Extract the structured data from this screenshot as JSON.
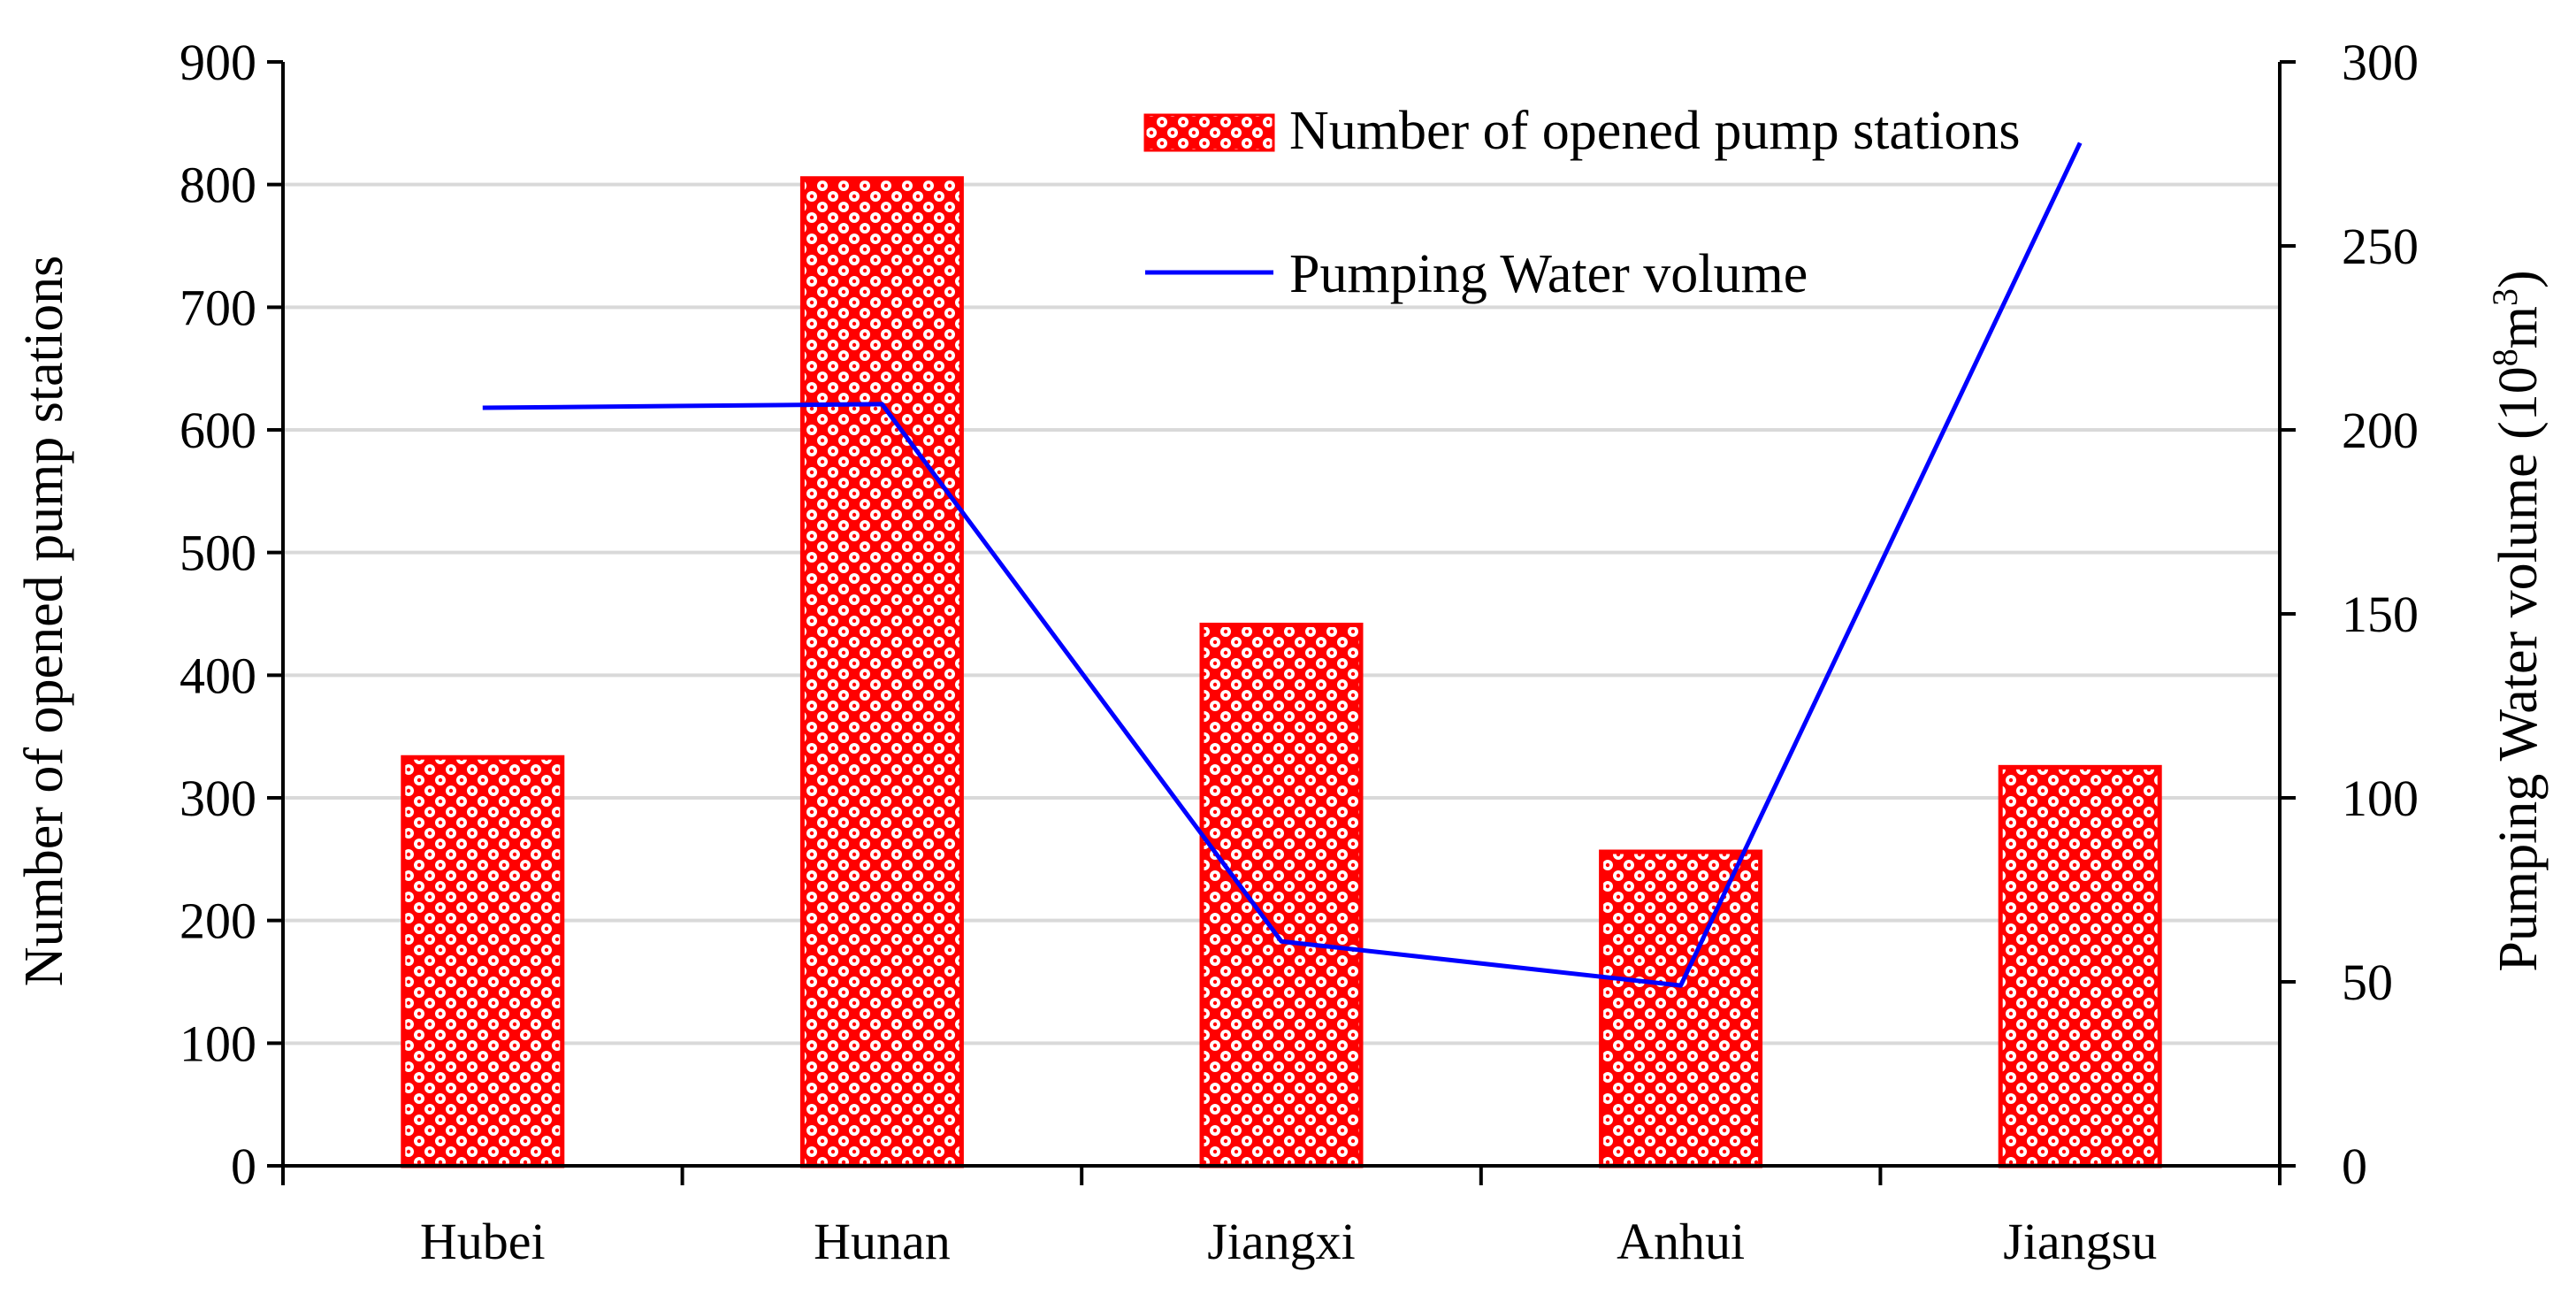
{
  "chart_data": {
    "type": "bar",
    "categories": [
      "Hubei",
      "Hunan",
      "Jiangxi",
      "Anhui",
      "Jiangsu"
    ],
    "series": [
      {
        "name": "Number of opened pump stations",
        "kind": "bar",
        "axis": "left",
        "values": [
          333,
          805,
          441,
          256,
          325
        ]
      },
      {
        "name": "Pumping Water volume",
        "kind": "line",
        "axis": "right",
        "values": [
          206,
          207,
          61,
          49,
          278
        ]
      }
    ],
    "y_left": {
      "label": "Number of opened  pump stations",
      "min": 0,
      "max": 900,
      "step": 100,
      "ticks": [
        "0",
        "100",
        "200",
        "300",
        "400",
        "500",
        "600",
        "700",
        "800",
        "900"
      ]
    },
    "y_right": {
      "label_main": "Pumping Water volume (10",
      "label_sup1": "8",
      "label_mid": "m",
      "label_sup2": "3",
      "label_end": ")",
      "min": 0,
      "max": 300,
      "step": 50,
      "ticks": [
        "0",
        "50",
        "100",
        "150",
        "200",
        "250",
        "300"
      ]
    },
    "grid": true,
    "legend_position": "top-right",
    "colors": {
      "bar": "#ff0000",
      "bar_pattern_bg": "#ffffff",
      "line": "#0000ff",
      "grid": "#d9d9d9",
      "axis": "#000000"
    }
  }
}
